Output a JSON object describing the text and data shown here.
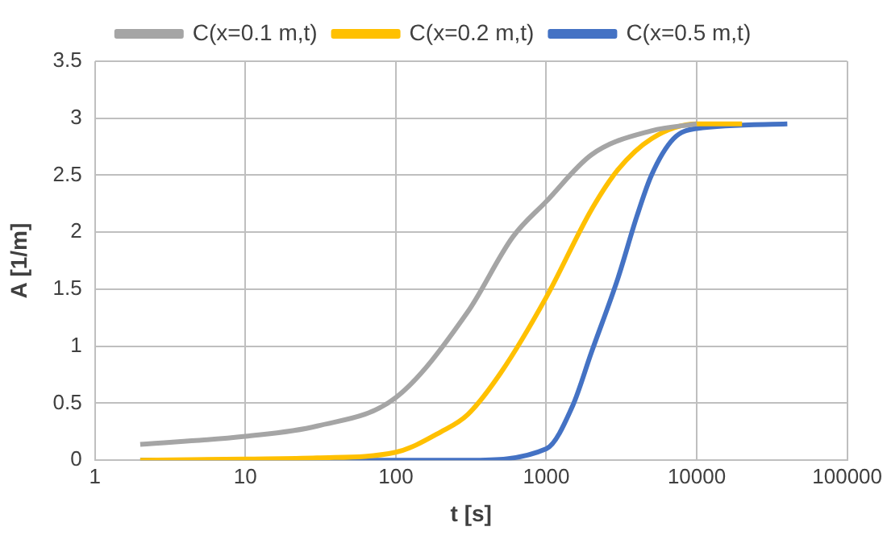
{
  "chart_data": {
    "type": "line",
    "xlabel": "t [s]",
    "ylabel": "A [1/m]",
    "log": "x",
    "grid": true,
    "legend": "top",
    "marker": "none",
    "line_style": "solid",
    "xlim": [
      1,
      100000
    ],
    "xticks": [
      1,
      10,
      100,
      1000,
      10000,
      100000
    ],
    "ylim": [
      0,
      3.5
    ],
    "yticks": [
      0,
      0.5,
      1,
      1.5,
      2,
      2.5,
      3,
      3.5
    ],
    "series": [
      {
        "name": "C(x=0.1 m,t)",
        "color": "#a5a5a5",
        "x": [
          2,
          10,
          30,
          100,
          300,
          600,
          1000,
          2000,
          5000,
          10000
        ],
        "values": [
          0.14,
          0.21,
          0.3,
          0.55,
          1.3,
          1.96,
          2.27,
          2.68,
          2.89,
          2.95
        ]
      },
      {
        "name": "C(x=0.2 m,t)",
        "color": "#ffc000",
        "x": [
          2,
          10,
          30,
          100,
          200,
          300,
          500,
          1000,
          2000,
          3000,
          5000,
          10000,
          20000
        ],
        "values": [
          0,
          0.01,
          0.02,
          0.07,
          0.25,
          0.4,
          0.77,
          1.43,
          2.2,
          2.55,
          2.82,
          2.95,
          2.95
        ]
      },
      {
        "name": "C(x=0.5 m,t)",
        "color": "#4472c4",
        "x": [
          2,
          100,
          300,
          1000,
          1500,
          2000,
          3000,
          4000,
          5000,
          7000,
          10000,
          40000
        ],
        "values": [
          0,
          0,
          0,
          0.1,
          0.48,
          0.95,
          1.6,
          2.14,
          2.5,
          2.82,
          2.91,
          2.95
        ]
      }
    ]
  }
}
